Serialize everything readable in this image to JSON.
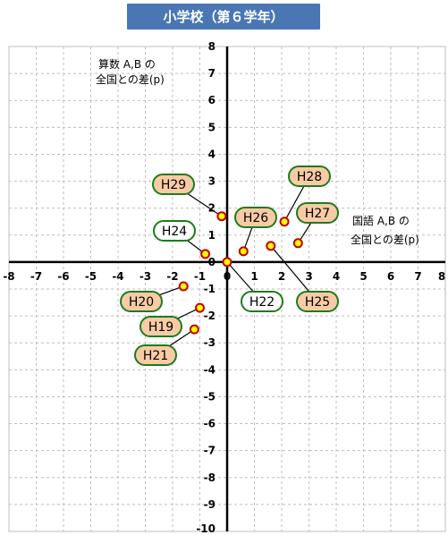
{
  "title": "小学校（第６学年）",
  "chart_data": {
    "type": "scatter",
    "title": "小学校（第６学年）",
    "xlabel_lines": [
      "国語 A,B の",
      "全国との差(p)"
    ],
    "ylabel_lines": [
      "算数 A,B の",
      "全国との差(p)"
    ],
    "xlim": [
      -8,
      8
    ],
    "ylim": [
      -10,
      8
    ],
    "x_ticks": [
      -8,
      -7,
      -6,
      -5,
      -4,
      -3,
      -2,
      -1,
      0,
      1,
      2,
      3,
      4,
      5,
      6,
      7,
      8
    ],
    "y_ticks": [
      -10,
      -9,
      -8,
      -7,
      -6,
      -5,
      -4,
      -3,
      -2,
      -1,
      0,
      1,
      2,
      3,
      4,
      5,
      6,
      7,
      8
    ],
    "grid": true,
    "points": [
      {
        "label": "H19",
        "x": -1.0,
        "y": -1.7,
        "fill": "#f8cba5"
      },
      {
        "label": "H20",
        "x": -1.6,
        "y": -0.9,
        "fill": "#f8cba5"
      },
      {
        "label": "H21",
        "x": -1.2,
        "y": -2.5,
        "fill": "#f8cba5"
      },
      {
        "label": "H22",
        "x": 0.0,
        "y": 0.0,
        "fill": "#ffffff"
      },
      {
        "label": "H24",
        "x": -0.8,
        "y": 0.3,
        "fill": "#ffffff"
      },
      {
        "label": "H25",
        "x": 1.6,
        "y": 0.6,
        "fill": "#f8cba5"
      },
      {
        "label": "H26",
        "x": 0.6,
        "y": 0.4,
        "fill": "#f8cba5"
      },
      {
        "label": "H27",
        "x": 2.6,
        "y": 0.7,
        "fill": "#f8cba5"
      },
      {
        "label": "H28",
        "x": 2.1,
        "y": 1.5,
        "fill": "#f8cba5"
      },
      {
        "label": "H29",
        "x": -0.2,
        "y": 1.7,
        "fill": "#f8cba5"
      }
    ],
    "colors": {
      "title_bg": "#4a77b4",
      "marker_fill": "#ffff00",
      "marker_stroke": "#c00000",
      "callout_border": "#1e7b1e",
      "axis": "#000000",
      "grid": "#bfbfbf"
    }
  }
}
